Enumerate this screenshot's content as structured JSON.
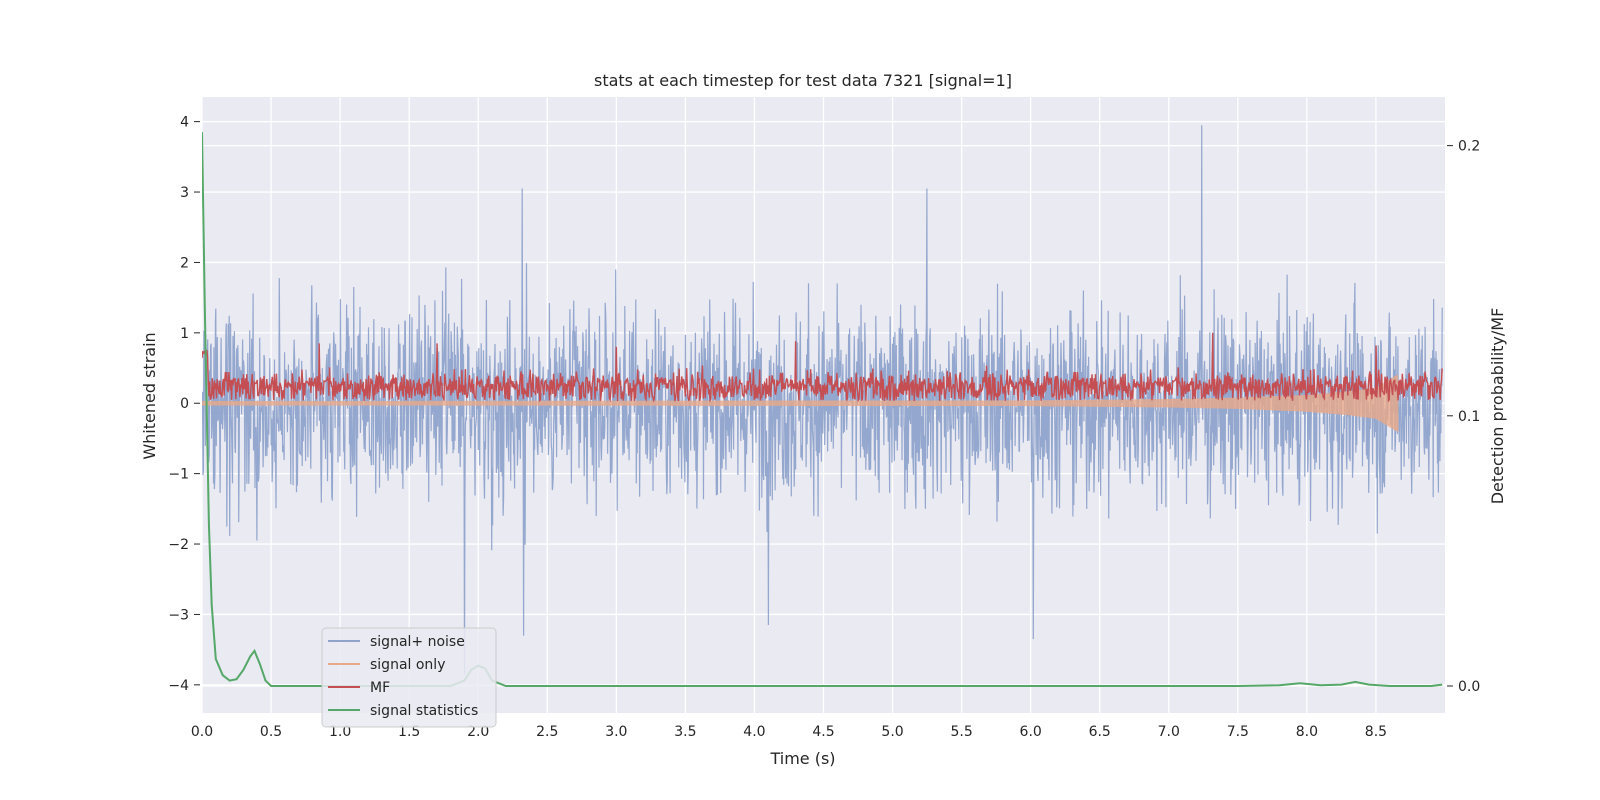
{
  "chart_data": {
    "type": "line",
    "title": "stats at each timestep for test data 7321 [signal=1]",
    "xlabel": "Time (s)",
    "ylabel": "Whitened strain",
    "y2label": "Detection probability/MF",
    "xlim": [
      0,
      9.0
    ],
    "ylim": [
      -4.4,
      4.35
    ],
    "y2lim": [
      -0.01,
      0.218
    ],
    "x_ticks": [
      "0.0",
      "0.5",
      "1.0",
      "1.5",
      "2.0",
      "2.5",
      "3.0",
      "3.5",
      "4.0",
      "4.5",
      "5.0",
      "5.5",
      "6.0",
      "6.5",
      "7.0",
      "7.5",
      "8.0",
      "8.5"
    ],
    "y_ticks": [
      "4",
      "3",
      "2",
      "1",
      "0",
      "−1",
      "−2",
      "−3",
      "−4"
    ],
    "y2_ticks": [
      "0.2",
      "0.1",
      "0.0"
    ],
    "grid": true,
    "legend_position": "bottom-left",
    "series": [
      {
        "name": "signal+ noise",
        "axis": "left",
        "color": "#8fa3cb",
        "description": "dense whitened strain noise roughly between -3 and 3, peak near 3.95 at t=7.25",
        "amplitude": 0.95,
        "peaks": [
          [
            7.24,
            3.95
          ],
          [
            2.32,
            3.05
          ],
          [
            5.25,
            3.05
          ],
          [
            1.9,
            -3.85
          ],
          [
            6.02,
            -3.35
          ],
          [
            4.1,
            -3.15
          ],
          [
            2.33,
            -3.3
          ]
        ]
      },
      {
        "name": "signal only",
        "axis": "left",
        "color": "#e8a98a",
        "description": "chirp signal, near zero amplitude, growing toward merger near t=8.65",
        "envelope": {
          "x": [
            0,
            6.0,
            7.0,
            7.5,
            8.0,
            8.3,
            8.5,
            8.65
          ],
          "y": [
            0.03,
            0.04,
            0.06,
            0.08,
            0.12,
            0.17,
            0.22,
            0.4
          ]
        },
        "end_x": 8.66
      },
      {
        "name": "MF",
        "axis": "left",
        "color": "#c44e52",
        "description": "matched filter output between about 0 and 0.6 with spikes up to 1.0",
        "baseline": 0.25,
        "spikes": [
          [
            7.32,
            1.0
          ],
          [
            8.5,
            0.82
          ],
          [
            4.3,
            0.88
          ],
          [
            1.7,
            0.85
          ],
          [
            0.85,
            0.85
          ],
          [
            3.0,
            0.8
          ]
        ]
      },
      {
        "name": "signal statistics",
        "axis": "right",
        "color": "#55a868",
        "x": [
          0,
          0.02,
          0.05,
          0.07,
          0.1,
          0.15,
          0.2,
          0.25,
          0.3,
          0.35,
          0.38,
          0.42,
          0.46,
          0.5,
          0.6,
          1.0,
          1.5,
          1.8,
          1.9,
          1.95,
          2.0,
          2.05,
          2.1,
          2.2,
          3.0,
          5.0,
          7.5,
          7.8,
          7.95,
          8.1,
          8.25,
          8.35,
          8.45,
          8.6,
          8.9,
          8.98
        ],
        "y": [
          0.205,
          0.14,
          0.06,
          0.03,
          0.01,
          0.004,
          0.002,
          0.0025,
          0.006,
          0.011,
          0.013,
          0.008,
          0.002,
          0.0,
          0.0,
          0.0,
          0.0,
          0.0,
          0.002,
          0.006,
          0.0075,
          0.0065,
          0.002,
          0.0,
          0.0,
          0.0,
          0.0,
          0.0003,
          0.001,
          0.0003,
          0.0005,
          0.0015,
          0.0005,
          0.0,
          0.0,
          0.0005
        ]
      }
    ]
  }
}
